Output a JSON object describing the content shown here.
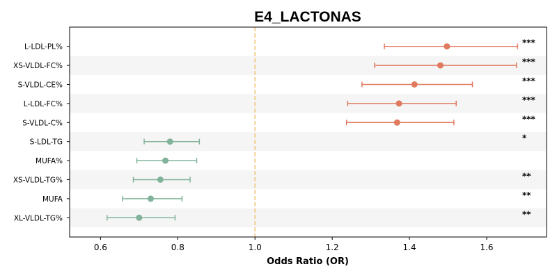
{
  "chart_data": {
    "type": "forest",
    "title": "E4_LACTONAS",
    "xlabel": "Odds Ratio (OR)",
    "xlim": [
      0.52,
      1.755
    ],
    "xticks": [
      "0.6",
      "0.8",
      "1.0",
      "1.2",
      "1.4",
      "1.6"
    ],
    "reference_line": 1.0,
    "rows": [
      {
        "label": "L-LDL-PL%",
        "or": 1.497,
        "lo": 1.335,
        "hi": 1.68,
        "sig": "***",
        "color": "#e07a5f"
      },
      {
        "label": "XS-VLDL-FC%",
        "or": 1.48,
        "lo": 1.31,
        "hi": 1.677,
        "sig": "***",
        "color": "#e07a5f"
      },
      {
        "label": "S-VLDL-CE%",
        "or": 1.413,
        "lo": 1.277,
        "hi": 1.563,
        "sig": "***",
        "color": "#e07a5f"
      },
      {
        "label": "L-LDL-FC%",
        "or": 1.373,
        "lo": 1.24,
        "hi": 1.521,
        "sig": "***",
        "color": "#e07a5f"
      },
      {
        "label": "S-VLDL-C%",
        "or": 1.368,
        "lo": 1.237,
        "hi": 1.515,
        "sig": "***",
        "color": "#e07a5f"
      },
      {
        "label": "S-LDL-TG",
        "or": 0.78,
        "lo": 0.713,
        "hi": 0.856,
        "sig": "*",
        "color": "#81b29a"
      },
      {
        "label": "MUFA%",
        "or": 0.768,
        "lo": 0.694,
        "hi": 0.849,
        "sig": "",
        "color": "#81b29a"
      },
      {
        "label": "XS-VLDL-TG%",
        "or": 0.755,
        "lo": 0.685,
        "hi": 0.832,
        "sig": "**",
        "color": "#81b29a"
      },
      {
        "label": "MUFA",
        "or": 0.73,
        "lo": 0.657,
        "hi": 0.811,
        "sig": "**",
        "color": "#81b29a"
      },
      {
        "label": "XL-VLDL-TG%",
        "or": 0.7,
        "lo": 0.617,
        "hi": 0.793,
        "sig": "**",
        "color": "#81b29a"
      }
    ],
    "colors": {
      "positive": "#e07a5f",
      "negative": "#81b29a",
      "reference_line": "#f2c67f",
      "band": "#f5f5f5"
    },
    "grid": false
  }
}
